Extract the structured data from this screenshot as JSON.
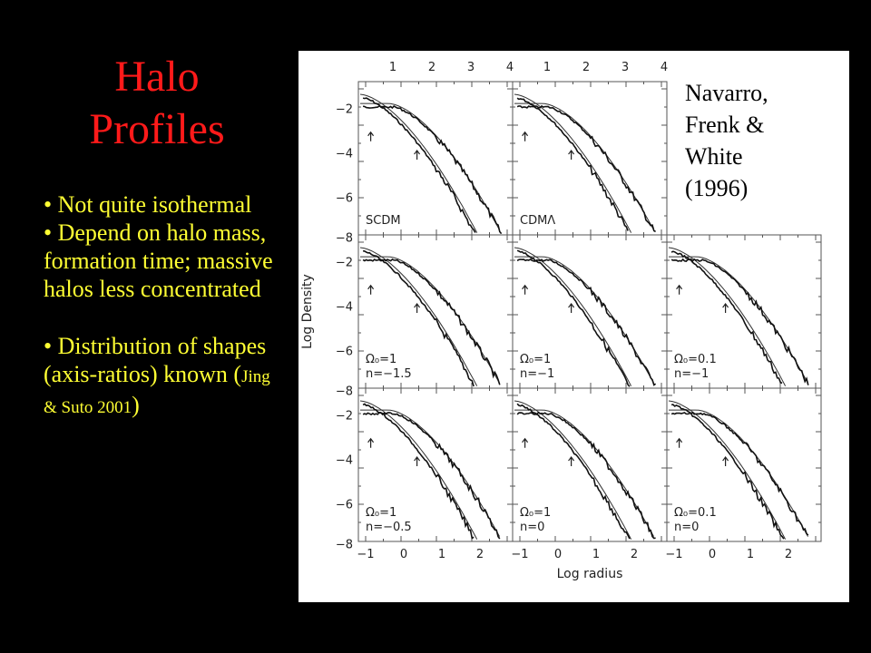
{
  "slide": {
    "title_line1": "Halo",
    "title_line2": "Profiles",
    "bullets": [
      "• Not quite isothermal",
      "• Depend on halo mass,  formation time; massive halos less concentrated",
      "• Distribution of shapes (axis-ratios) known",
      "Jing & Suto 2001"
    ],
    "colors": {
      "background": "#000000",
      "title": "#ff1a1a",
      "bullets": "#ffff33"
    }
  },
  "figure": {
    "credit": [
      "Navarro,",
      "Frenk &",
      "White",
      "(1996)"
    ],
    "xlabel": "Log radius",
    "ylabel": "Log Density",
    "top_tick_labels": [
      "1",
      "2",
      "3",
      "4"
    ],
    "bottom_tick_labels": [
      "−1",
      "0",
      "1",
      "2"
    ],
    "y_tick_labels": [
      "−2",
      "−4",
      "−6",
      "−8"
    ],
    "panels": [
      {
        "row": 0,
        "col": 0,
        "label_lines": [
          "SCDM"
        ]
      },
      {
        "row": 0,
        "col": 1,
        "label_lines": [
          "CDMΛ"
        ]
      },
      {
        "row": 1,
        "col": 0,
        "label_lines": [
          "Ω₀=1",
          "n=−1.5"
        ]
      },
      {
        "row": 1,
        "col": 1,
        "label_lines": [
          "Ω₀=1",
          "n=−1"
        ]
      },
      {
        "row": 1,
        "col": 2,
        "label_lines": [
          "Ω₀=0.1",
          "n=−1"
        ]
      },
      {
        "row": 2,
        "col": 0,
        "label_lines": [
          "Ω₀=1",
          "n=−0.5"
        ]
      },
      {
        "row": 2,
        "col": 1,
        "label_lines": [
          "Ω₀=1",
          "n=0"
        ]
      },
      {
        "row": 2,
        "col": 2,
        "label_lines": [
          "Ω₀=0.1",
          "n=0"
        ]
      }
    ]
  }
}
